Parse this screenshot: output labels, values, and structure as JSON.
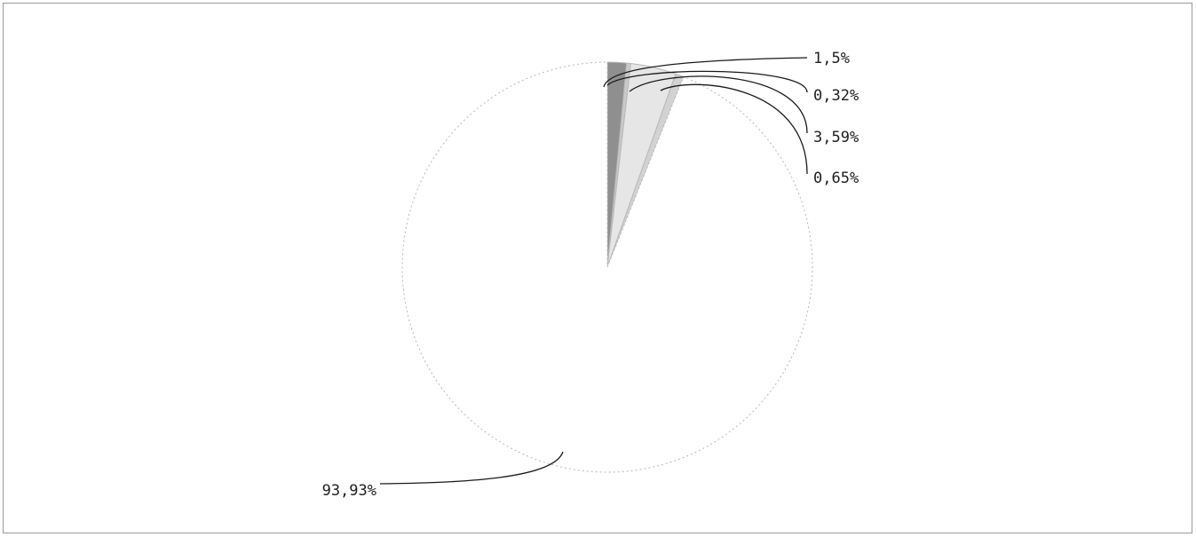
{
  "chart_data": {
    "type": "pie",
    "categories": [
      "1,5%",
      "0,32%",
      "3,59%",
      "0,65%",
      "93,93%"
    ],
    "values": [
      1.5,
      0.32,
      3.59,
      0.65,
      93.93
    ],
    "data_labels": [
      "1,5%",
      "0,32%",
      "3,59%",
      "0,65%",
      "93,93%"
    ],
    "colors": [
      "#8f8f8f",
      "#c9c9c9",
      "#e6e6e6",
      "#d2d2d2",
      "#ffffff"
    ],
    "title": "",
    "legend": "none",
    "grid": false
  }
}
